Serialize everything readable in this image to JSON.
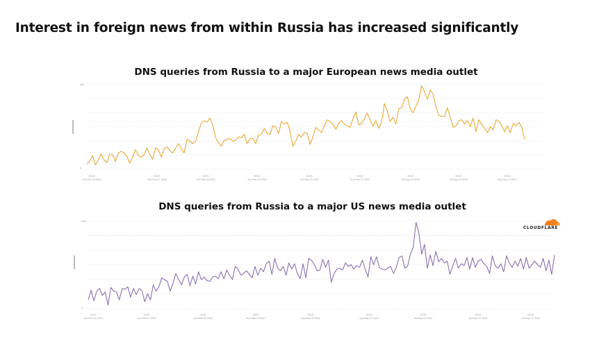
{
  "slide": {
    "title": "Interest in foreign news from within Russia has increased significantly"
  },
  "logo": {
    "text": "CLOUDFLARE",
    "color": "#f38020"
  },
  "chart_data": [
    {
      "type": "line",
      "title": "DNS queries from Russia to a major European news media outlet",
      "color": "#e8a634",
      "y_tick_labels": [
        "Max",
        "0"
      ],
      "x_tick_labels": [
        [
          "00:00",
          "Sun Feb 20 2022"
        ],
        [
          "00:00",
          "Sun Feb 27 2022"
        ],
        [
          "00:00",
          "Sun Mar 06 2022"
        ],
        [
          "00:00",
          "Sun Mar 13 2022"
        ],
        [
          "00:00",
          "Sun Mar 20 2022"
        ],
        [
          "00:00",
          "Sun Mar 27 2022"
        ],
        [
          "00:00",
          "Sun Apr 03 2022"
        ],
        [
          "00:00",
          "Sun Apr 10 2022"
        ],
        [
          "00:00",
          "Sun Apr 17 2022"
        ]
      ],
      "grid": true,
      "ylim": [
        0,
        1
      ],
      "series": [
        {
          "values": [
            0.06,
            0.09,
            0.16,
            0.05,
            0.11,
            0.18,
            0.11,
            0.08,
            0.18,
            0.17,
            0.09,
            0.19,
            0.21,
            0.19,
            0.15,
            0.07,
            0.14,
            0.23,
            0.16,
            0.14,
            0.17,
            0.25,
            0.17,
            0.12,
            0.25,
            0.23,
            0.14,
            0.24,
            0.26,
            0.22,
            0.19,
            0.25,
            0.3,
            0.24,
            0.19,
            0.35,
            0.33,
            0.3,
            0.33,
            0.44,
            0.54,
            0.57,
            0.55,
            0.6,
            0.52,
            0.37,
            0.31,
            0.27,
            0.34,
            0.35,
            0.36,
            0.33,
            0.34,
            0.38,
            0.37,
            0.41,
            0.3,
            0.36,
            0.36,
            0.3,
            0.4,
            0.41,
            0.48,
            0.42,
            0.41,
            0.51,
            0.49,
            0.42,
            0.56,
            0.53,
            0.55,
            0.45,
            0.27,
            0.33,
            0.41,
            0.38,
            0.43,
            0.42,
            0.29,
            0.38,
            0.49,
            0.46,
            0.43,
            0.51,
            0.58,
            0.56,
            0.53,
            0.47,
            0.54,
            0.57,
            0.53,
            0.51,
            0.49,
            0.59,
            0.67,
            0.52,
            0.54,
            0.59,
            0.66,
            0.58,
            0.5,
            0.57,
            0.48,
            0.55,
            0.77,
            0.68,
            0.56,
            0.61,
            0.53,
            0.71,
            0.72,
            0.82,
            0.85,
            0.71,
            0.66,
            0.74,
            0.81,
            0.98,
            0.91,
            0.82,
            0.93,
            0.88,
            0.73,
            0.63,
            0.62,
            0.62,
            0.72,
            0.61,
            0.49,
            0.51,
            0.57,
            0.58,
            0.53,
            0.57,
            0.5,
            0.6,
            0.44,
            0.58,
            0.53,
            0.48,
            0.43,
            0.5,
            0.46,
            0.58,
            0.56,
            0.51,
            0.44,
            0.51,
            0.43,
            0.54,
            0.51,
            0.55,
            0.49,
            0.35
          ]
        }
      ]
    },
    {
      "type": "line",
      "title": "DNS queries from Russia to a major US news media outlet",
      "color": "#8a6fb0",
      "y_tick_labels": [
        "Max",
        "0"
      ],
      "x_tick_labels": [
        [
          "00:00",
          "Sun Feb 20 2022"
        ],
        [
          "00:00",
          "Sun Feb 27 2022"
        ],
        [
          "00:00",
          "Sun Mar 06 2022"
        ],
        [
          "00:00",
          "Sun Mar 13 2022"
        ],
        [
          "00:00",
          "Sun Mar 20 2022"
        ],
        [
          "00:00",
          "Sun Mar 27 2022"
        ],
        [
          "00:00",
          "Sun Apr 03 2022"
        ],
        [
          "00:00",
          "Sun Apr 10 2022"
        ],
        [
          "00:00",
          "Sun Apr 17 2022"
        ]
      ],
      "grid": true,
      "ylim": [
        0,
        1
      ],
      "series": [
        {
          "values": [
            0.1,
            0.21,
            0.09,
            0.2,
            0.23,
            0.15,
            0.19,
            0.04,
            0.24,
            0.2,
            0.19,
            0.1,
            0.23,
            0.22,
            0.25,
            0.13,
            0.23,
            0.16,
            0.23,
            0.2,
            0.08,
            0.17,
            0.1,
            0.27,
            0.2,
            0.25,
            0.35,
            0.33,
            0.31,
            0.2,
            0.29,
            0.4,
            0.33,
            0.27,
            0.36,
            0.39,
            0.26,
            0.37,
            0.28,
            0.42,
            0.33,
            0.36,
            0.32,
            0.31,
            0.36,
            0.37,
            0.34,
            0.42,
            0.34,
            0.44,
            0.38,
            0.33,
            0.48,
            0.45,
            0.38,
            0.4,
            0.43,
            0.39,
            0.35,
            0.48,
            0.38,
            0.46,
            0.42,
            0.51,
            0.54,
            0.39,
            0.57,
            0.46,
            0.43,
            0.48,
            0.38,
            0.52,
            0.45,
            0.51,
            0.4,
            0.34,
            0.51,
            0.35,
            0.57,
            0.55,
            0.5,
            0.43,
            0.44,
            0.56,
            0.47,
            0.55,
            0.3,
            0.4,
            0.45,
            0.46,
            0.44,
            0.52,
            0.48,
            0.5,
            0.45,
            0.49,
            0.47,
            0.55,
            0.45,
            0.36,
            0.59,
            0.5,
            0.59,
            0.47,
            0.45,
            0.44,
            0.46,
            0.48,
            0.4,
            0.47,
            0.58,
            0.6,
            0.46,
            0.48,
            0.62,
            0.7,
            0.98,
            0.86,
            0.62,
            0.73,
            0.46,
            0.61,
            0.49,
            0.65,
            0.53,
            0.57,
            0.52,
            0.54,
            0.39,
            0.49,
            0.57,
            0.46,
            0.51,
            0.49,
            0.58,
            0.45,
            0.58,
            0.47,
            0.54,
            0.56,
            0.51,
            0.48,
            0.4,
            0.6,
            0.49,
            0.46,
            0.51,
            0.42,
            0.6,
            0.52,
            0.47,
            0.54,
            0.48,
            0.57,
            0.45,
            0.58,
            0.46,
            0.5,
            0.54,
            0.5,
            0.47,
            0.57,
            0.43,
            0.55,
            0.39,
            0.61
          ]
        }
      ]
    }
  ]
}
